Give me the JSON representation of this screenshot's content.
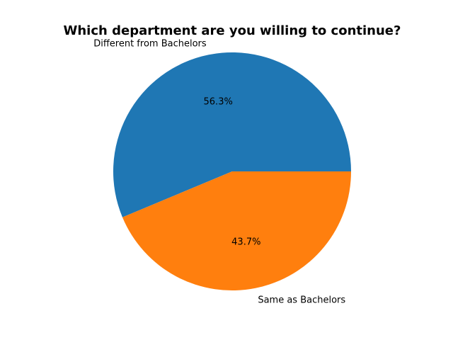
{
  "chart_data": {
    "type": "pie",
    "title": "Which department are you willing to continue?",
    "labels": [
      "Different from Bachelors",
      "Same as Bachelors"
    ],
    "values": [
      56.3,
      43.7
    ],
    "percent_labels": [
      "56.3%",
      "43.7%"
    ],
    "colors": [
      "#1f77b4",
      "#ff7f0e"
    ],
    "start_angle_deg": 0,
    "direction": "counterclockwise",
    "legend": "none"
  }
}
